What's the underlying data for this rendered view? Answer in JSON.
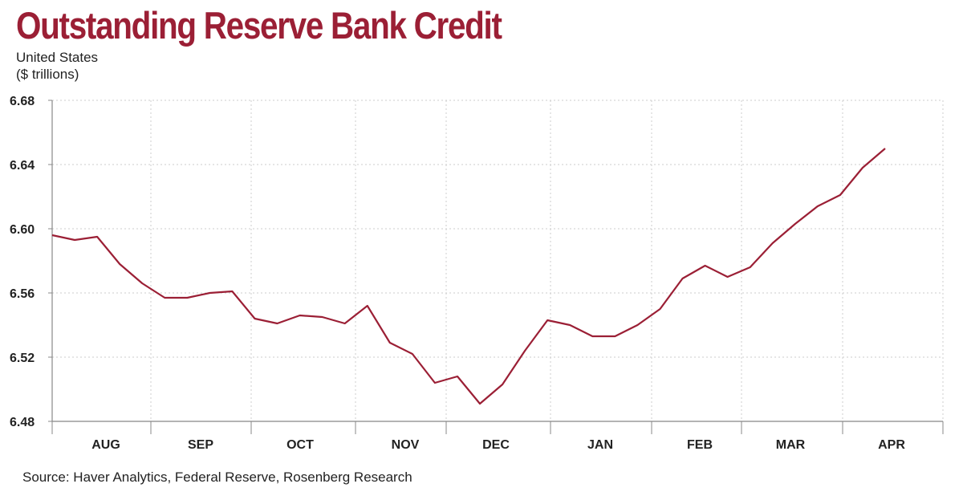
{
  "title": "Outstanding Reserve Bank Credit",
  "subtitle_line1": "United States",
  "subtitle_line2": "($ trillions)",
  "source": "Source: Haver Analytics, Federal Reserve, Rosenberg Research",
  "colors": {
    "title": "#9b1f35",
    "line": "#9b1f35",
    "grid": "#cccccc",
    "axis": "#888888"
  },
  "chart_data": {
    "type": "line",
    "title": "Outstanding Reserve Bank Credit",
    "subtitle": "United States ($ trillions)",
    "ylabel": "($ trillions)",
    "xlabel": "",
    "ylim": [
      6.48,
      6.68
    ],
    "yticks": [
      "6.48",
      "6.52",
      "6.56",
      "6.60",
      "6.64",
      "6.68"
    ],
    "months": [
      "AUG",
      "SEP",
      "OCT",
      "NOV",
      "DEC",
      "JAN",
      "FEB",
      "MAR",
      "APR"
    ],
    "grid": true,
    "series": [
      {
        "values": [
          6.596,
          6.593,
          6.595,
          6.578,
          6.566,
          6.557,
          6.557,
          6.56,
          6.561,
          6.544,
          6.541,
          6.546,
          6.545,
          6.541,
          6.552,
          6.529,
          6.522,
          6.504,
          6.508,
          6.491,
          6.503,
          6.524,
          6.543,
          6.54,
          6.533,
          6.533,
          6.54,
          6.55,
          6.569,
          6.577,
          6.57,
          6.576,
          6.591,
          6.603,
          6.614,
          6.621,
          6.638,
          6.65
        ]
      }
    ]
  }
}
